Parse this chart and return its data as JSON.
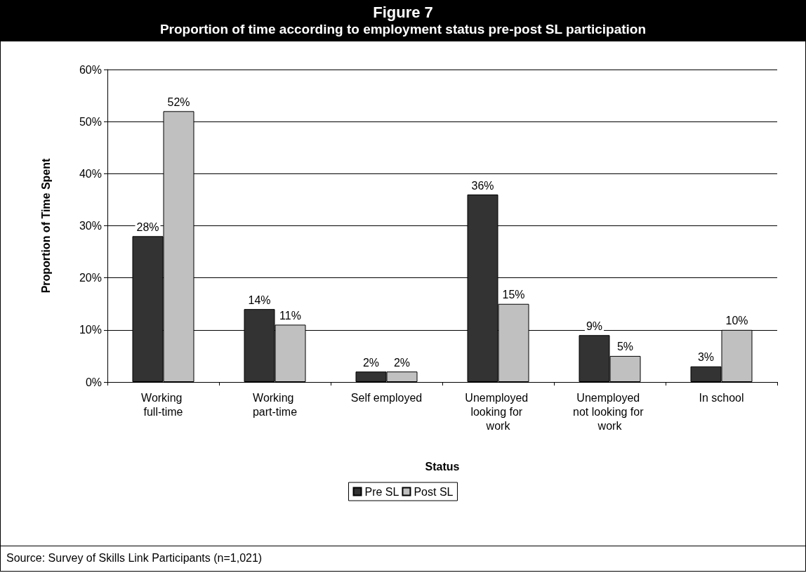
{
  "chart_data": {
    "type": "bar",
    "title": "Figure 7",
    "subtitle": "Proportion of time according to employment status pre-post SL participation",
    "xlabel": "Status",
    "ylabel": "Proportion of Time Spent",
    "categories": [
      "Working full-time",
      "Working part-time",
      "Self employed",
      "Unemployed looking for work",
      "Unemployed not looking for work",
      "In school"
    ],
    "series": [
      {
        "name": "Pre SL",
        "color": "#333333",
        "values": [
          28,
          14,
          2,
          36,
          9,
          3
        ],
        "value_labels": [
          "28%",
          "14%",
          "2%",
          "36%",
          "9%",
          "3%"
        ]
      },
      {
        "name": "Post SL",
        "color": "#c0c0c0",
        "values": [
          52,
          11,
          2,
          15,
          5,
          10
        ],
        "value_labels": [
          "52%",
          "11%",
          "2%",
          "15%",
          "5%",
          "10%"
        ]
      }
    ],
    "ylim": [
      0,
      60
    ],
    "yticks": [
      {
        "value": 0,
        "label": "0%"
      },
      {
        "value": 10,
        "label": "10%"
      },
      {
        "value": 20,
        "label": "20%"
      },
      {
        "value": 30,
        "label": "30%"
      },
      {
        "value": 40,
        "label": "40%"
      },
      {
        "value": 50,
        "label": "50%"
      },
      {
        "value": 60,
        "label": "60%"
      }
    ],
    "grid": "y",
    "legend": "bottom",
    "annotations": [
      "Source:  Survey of Skills Link Participants (n=1,021)"
    ]
  }
}
